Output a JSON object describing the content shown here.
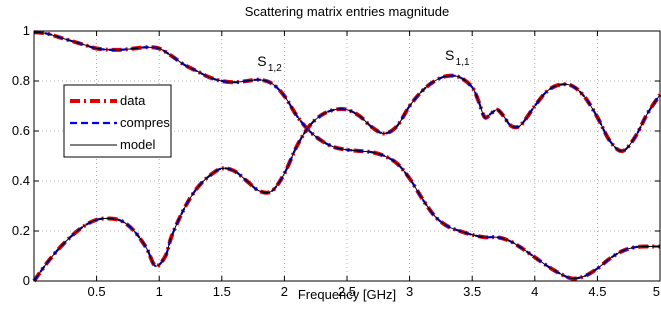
{
  "chart_data": {
    "type": "line",
    "title": "Scattering matrix entries magnitude",
    "xlabel": "Frequency [GHz]",
    "ylabel": "",
    "xlim": [
      0,
      5
    ],
    "ylim": [
      0,
      1
    ],
    "xticks": [
      0.5,
      1,
      1.5,
      2,
      2.5,
      3,
      3.5,
      4,
      4.5,
      5
    ],
    "xtick_labels": [
      "0.5",
      "1",
      "1.5",
      "2",
      "2.5",
      "3",
      "3.5",
      "4",
      "4.5",
      "5"
    ],
    "yticks": [
      0,
      0.2,
      0.4,
      0.6,
      0.8,
      1
    ],
    "ytick_labels": [
      "0",
      "0.2",
      "0.4",
      "0.6",
      "0.8",
      "1"
    ],
    "grid": true,
    "legend": {
      "position": "left",
      "entries": [
        {
          "name": "data",
          "color": "#e00000",
          "style": "dash-dot"
        },
        {
          "name": "compres",
          "color": "#0000ff",
          "style": "dashed"
        },
        {
          "name": "model",
          "color": "#000000",
          "style": "solid"
        }
      ]
    },
    "annotations": [
      {
        "base": "S",
        "sub": "1,2",
        "x": 1.82,
        "y": 0.86
      },
      {
        "base": "S",
        "sub": "1,1",
        "x": 3.32,
        "y": 0.885
      }
    ],
    "curves": [
      {
        "x": [
          0,
          0.1,
          0.2,
          0.3,
          0.4,
          0.5,
          0.6,
          0.7,
          0.8,
          0.9,
          1.0,
          1.1,
          1.2,
          1.3,
          1.4,
          1.5,
          1.6,
          1.7,
          1.8,
          1.9,
          2.0,
          2.1,
          2.2,
          2.3,
          2.4,
          2.5,
          2.6,
          2.7,
          2.8,
          2.9,
          3.0,
          3.1,
          3.2,
          3.3,
          3.4,
          3.5,
          3.6,
          3.7,
          3.8,
          3.9,
          4.0,
          4.1,
          4.2,
          4.3,
          4.4,
          4.5,
          4.6,
          4.7,
          4.8,
          4.9,
          5.0
        ],
        "y": [
          0.995,
          0.99,
          0.975,
          0.96,
          0.945,
          0.93,
          0.925,
          0.925,
          0.93,
          0.935,
          0.93,
          0.9,
          0.865,
          0.84,
          0.815,
          0.8,
          0.795,
          0.8,
          0.805,
          0.79,
          0.74,
          0.66,
          0.6,
          0.56,
          0.535,
          0.525,
          0.52,
          0.515,
          0.5,
          0.47,
          0.41,
          0.33,
          0.26,
          0.22,
          0.2,
          0.185,
          0.175,
          0.175,
          0.16,
          0.13,
          0.095,
          0.06,
          0.03,
          0.01,
          0.02,
          0.05,
          0.09,
          0.12,
          0.135,
          0.138,
          0.138
        ]
      },
      {
        "x": [
          0,
          0.1,
          0.2,
          0.3,
          0.4,
          0.5,
          0.6,
          0.7,
          0.8,
          0.9,
          0.97,
          1.05,
          1.1,
          1.2,
          1.3,
          1.4,
          1.5,
          1.6,
          1.7,
          1.8,
          1.9,
          2.0,
          2.1,
          2.2,
          2.3,
          2.4,
          2.5,
          2.6,
          2.7,
          2.8,
          2.9,
          3.0,
          3.1,
          3.2,
          3.3,
          3.4,
          3.5,
          3.55,
          3.6,
          3.65,
          3.7,
          3.75,
          3.8,
          3.85,
          3.9,
          4.0,
          4.1,
          4.2,
          4.3,
          4.4,
          4.5,
          4.6,
          4.7,
          4.8,
          4.9,
          5.0
        ],
        "y": [
          0.0,
          0.07,
          0.13,
          0.18,
          0.22,
          0.245,
          0.25,
          0.24,
          0.2,
          0.13,
          0.06,
          0.1,
          0.18,
          0.29,
          0.37,
          0.42,
          0.45,
          0.44,
          0.4,
          0.36,
          0.36,
          0.43,
          0.54,
          0.62,
          0.665,
          0.685,
          0.685,
          0.66,
          0.615,
          0.59,
          0.62,
          0.7,
          0.76,
          0.8,
          0.82,
          0.815,
          0.775,
          0.72,
          0.655,
          0.67,
          0.685,
          0.66,
          0.625,
          0.615,
          0.63,
          0.7,
          0.76,
          0.785,
          0.78,
          0.735,
          0.655,
          0.56,
          0.52,
          0.575,
          0.67,
          0.745
        ]
      }
    ]
  }
}
